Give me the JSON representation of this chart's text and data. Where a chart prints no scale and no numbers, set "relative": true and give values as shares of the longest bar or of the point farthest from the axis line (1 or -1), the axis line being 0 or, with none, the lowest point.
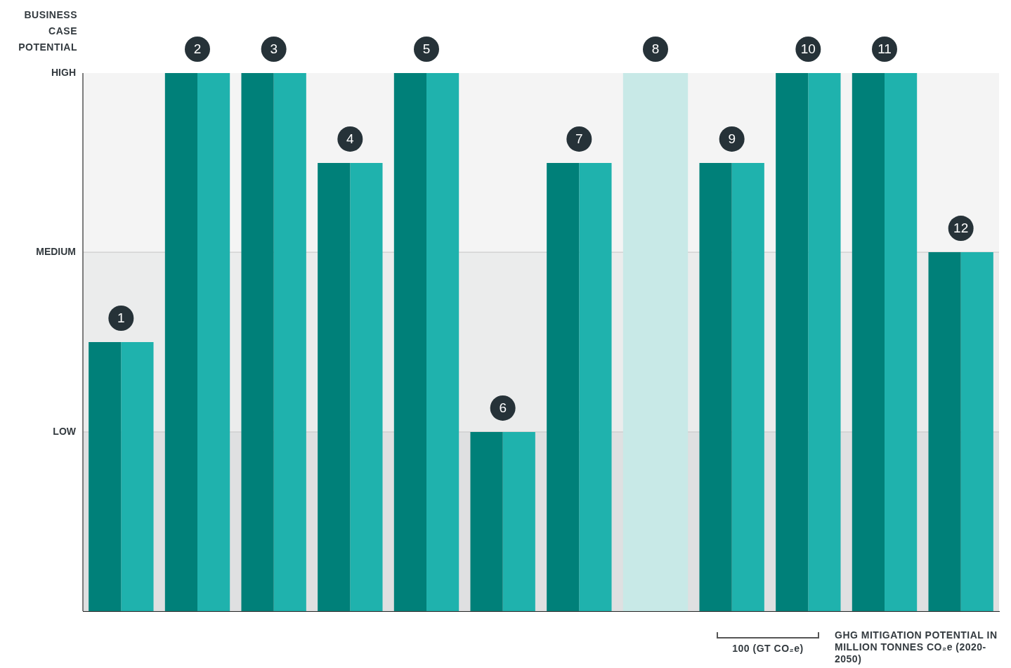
{
  "chart_data": {
    "type": "bar",
    "ylabel": "BUSINESS CASE POTENTIAL",
    "xlabel": "GHG MITIGATION POTENTIAL IN MILLION TONNES CO₂e (2020-2050)",
    "categories": [
      "1",
      "2",
      "3",
      "4",
      "5",
      "6",
      "7",
      "8",
      "9",
      "10",
      "11",
      "12"
    ],
    "relative": true,
    "series": [
      {
        "color": "#008079",
        "values": [
          0.5,
          1,
          1,
          0.833,
          1,
          0.333,
          0.833,
          null,
          0.833,
          1,
          1,
          0.667
        ]
      },
      {
        "color": "#1fb2ad",
        "values": [
          0.5,
          1,
          1,
          0.833,
          1,
          0.333,
          0.833,
          null,
          0.833,
          1,
          1,
          0.667
        ]
      },
      {
        "color": "#c8e9e7",
        "values": [
          null,
          null,
          null,
          null,
          null,
          null,
          null,
          1,
          null,
          null,
          null,
          null
        ]
      }
    ],
    "bands": [
      {
        "axis": "y",
        "from": 0,
        "to": 0.333,
        "color": "#dfe0e1"
      },
      {
        "axis": "y",
        "from": 0.333,
        "to": 0.667,
        "color": "#ebecec"
      },
      {
        "axis": "y",
        "from": 0.667,
        "to": 1,
        "label": "HIGH",
        "color": "#f4f4f4"
      }
    ],
    "ref_lines": [
      {
        "axis": "y",
        "value": 0.333,
        "label": "LOW",
        "color": "#c4c4c4"
      },
      {
        "axis": "y",
        "value": 0.667,
        "label": "MEDIUM",
        "color": "#c4c4c4"
      }
    ],
    "legend": false,
    "annotations": [
      "100 (GT CO₂e)"
    ]
  }
}
